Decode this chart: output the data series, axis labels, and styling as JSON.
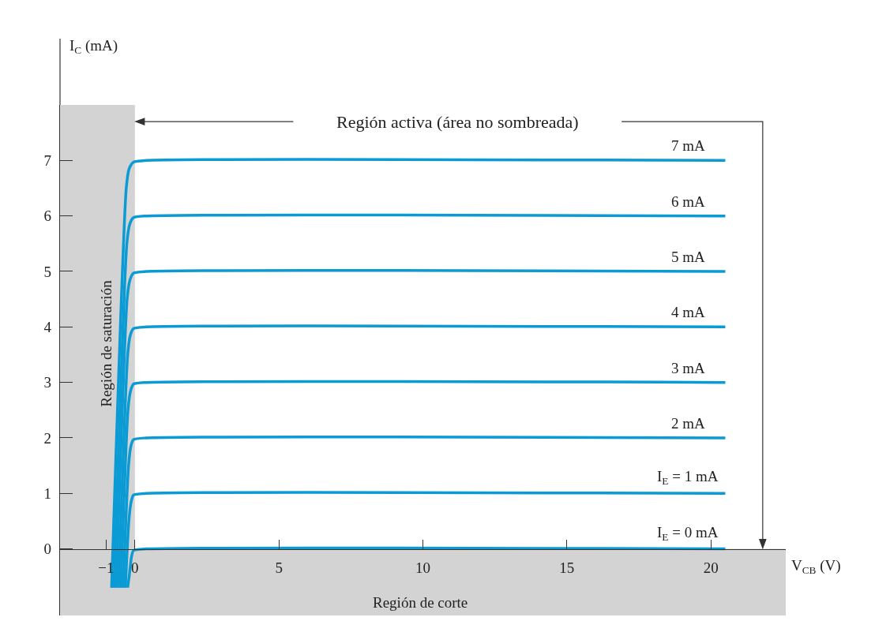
{
  "chart_data": {
    "type": "line",
    "xlabel": "V$_{CB}$ (V)",
    "ylabel": "I$_{C}$ (mA)",
    "xlim": [
      -2.6,
      22.6
    ],
    "xticks": [
      -1,
      0,
      5,
      10,
      15,
      20
    ],
    "ylim": [
      -1.2,
      8
    ],
    "yticks": [
      0,
      1,
      2,
      3,
      4,
      5,
      6,
      7
    ],
    "grid": false,
    "legend": false,
    "marker": "none",
    "line_style": "solid",
    "series": [
      {
        "name": "7 mA",
        "color": "#0a9bd5",
        "x": [
          -0.81,
          -0.3,
          -0.2,
          -0.05,
          0.4,
          20.5
        ],
        "values": [
          -0.7,
          6.5,
          6.85,
          6.97,
          7,
          7
        ]
      },
      {
        "name": "6 mA",
        "color": "#0a9bd5",
        "x": [
          -0.73,
          -0.28,
          -0.18,
          -0.05,
          0.4,
          20.5
        ],
        "values": [
          -0.7,
          5.5,
          5.85,
          5.97,
          6,
          6
        ]
      },
      {
        "name": "5 mA",
        "color": "#0a9bd5",
        "x": [
          -0.65,
          -0.27,
          -0.17,
          -0.05,
          0.4,
          20.5
        ],
        "values": [
          -0.7,
          4.5,
          4.85,
          4.97,
          5,
          5
        ]
      },
      {
        "name": "4 mA",
        "color": "#0a9bd5",
        "x": [
          -0.57,
          -0.25,
          -0.16,
          -0.05,
          0.4,
          20.5
        ],
        "values": [
          -0.7,
          3.5,
          3.85,
          3.97,
          4,
          4
        ]
      },
      {
        "name": "3 mA",
        "color": "#0a9bd5",
        "x": [
          -0.49,
          -0.24,
          -0.15,
          -0.05,
          0.4,
          20.5
        ],
        "values": [
          -0.7,
          2.5,
          2.85,
          2.97,
          3,
          3
        ]
      },
      {
        "name": "2 mA",
        "color": "#0a9bd5",
        "x": [
          -0.41,
          -0.22,
          -0.14,
          -0.05,
          0.4,
          20.5
        ],
        "values": [
          -0.7,
          1.5,
          1.85,
          1.97,
          2,
          2
        ]
      },
      {
        "name": "I$_{E}$ = 1 mA",
        "color": "#0a9bd5",
        "x": [
          -0.33,
          -0.21,
          -0.13,
          -0.05,
          0.4,
          20.5
        ],
        "values": [
          -0.7,
          0.5,
          0.85,
          0.97,
          1,
          1
        ]
      },
      {
        "name": "I$_{E}$ = 0 mA",
        "color": "#0a9bd5",
        "x": [
          -0.25,
          -0.2,
          -0.12,
          -0.05,
          0.4,
          20.5
        ],
        "values": [
          -0.7,
          -0.5,
          -0.15,
          -0.03,
          0,
          0
        ]
      }
    ],
    "bands": [
      {
        "axis": "x",
        "from": -2.6,
        "to": 0,
        "label": "Región de saturación",
        "color": "#d3d3d3"
      },
      {
        "axis": "y",
        "from": -1.2,
        "to": 0,
        "label": "Región de corte",
        "color": "#d3d3d3"
      }
    ],
    "annotations": [
      "Región activa (área no sombreada)"
    ]
  }
}
